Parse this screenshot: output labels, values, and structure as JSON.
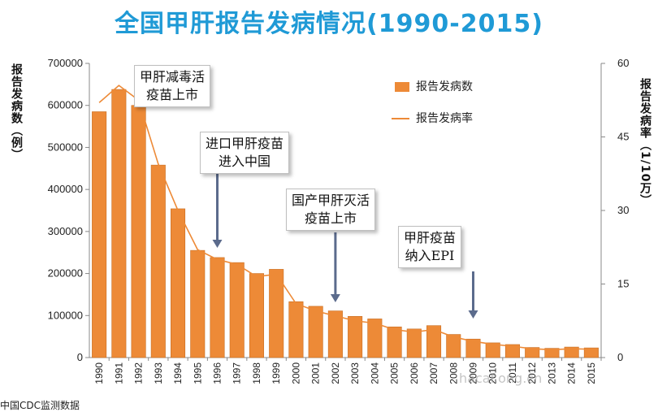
{
  "title": "全国甲肝报告发病情况(1990-2015)",
  "left_axis_label": "报告发病数（例）",
  "right_axis_label": "报告发病率（1/10万）",
  "legend": {
    "bars": "报告发病数",
    "line": "报告发病率"
  },
  "annotations": [
    {
      "text": "甲肝减毒活疫苗上市",
      "lines": [
        "甲肝减毒活",
        "疫苗上市"
      ]
    },
    {
      "text": "进口甲肝疫苗进入中国",
      "lines": [
        "进口甲肝疫苗",
        "进入中国"
      ]
    },
    {
      "text": "国产甲肝灭活疫苗上市",
      "lines": [
        "国产甲肝灭活",
        "疫苗上市"
      ]
    },
    {
      "text": "甲肝疫苗纳入EPI",
      "lines": [
        "甲肝疫苗",
        "纳入EPI"
      ]
    }
  ],
  "source_text": "中国CDC监测数据",
  "watermark": "hacaf.ong.cn",
  "colors": {
    "title": "#1f9ad6",
    "bar": "#ed8a37",
    "bar_edge": "#c86e22",
    "line": "#ed8a37",
    "arrow": "#5b6b8c"
  },
  "chart_data": {
    "type": "bar",
    "title": "全国甲肝报告发病情况(1990-2015)",
    "categories": [
      "1990",
      "1991",
      "1992",
      "1993",
      "1994",
      "1995",
      "1996",
      "1997",
      "1998",
      "1999",
      "2000",
      "2001",
      "2002",
      "2003",
      "2004",
      "2005",
      "2006",
      "2007",
      "2008",
      "2009",
      "2010",
      "2011",
      "2012",
      "2013",
      "2014",
      "2015"
    ],
    "series": [
      {
        "name": "报告发病数",
        "type": "bar",
        "axis": "left",
        "values": [
          585000,
          638000,
          600000,
          458000,
          354000,
          255000,
          238000,
          226000,
          200000,
          210000,
          133000,
          122000,
          111000,
          98000,
          92000,
          73000,
          68000,
          76000,
          55000,
          44000,
          35000,
          31000,
          24000,
          22000,
          25000,
          23000
        ]
      },
      {
        "name": "报告发病率",
        "type": "line",
        "axis": "right",
        "values": [
          52,
          55.5,
          52.5,
          39.5,
          30,
          22,
          20,
          19,
          16.5,
          17,
          11,
          9.5,
          8.5,
          7.5,
          7,
          5.7,
          5.2,
          5.7,
          4.2,
          3.3,
          2.7,
          2.3,
          1.8,
          1.6,
          1.8,
          1.7
        ]
      }
    ],
    "ylim_left": [
      0,
      700000
    ],
    "yticks_left": [
      0,
      100000,
      200000,
      300000,
      400000,
      500000,
      600000,
      700000
    ],
    "ylim_right": [
      0,
      60
    ],
    "yticks_right": [
      0,
      15,
      30,
      45,
      60
    ],
    "ylabel_left": "报告发病数（例）",
    "ylabel_right": "报告发病率（1/10万）",
    "grid": false,
    "legend_position": "top-right",
    "annotation_years": [
      "1992",
      "1996",
      "2002",
      "2009"
    ]
  }
}
